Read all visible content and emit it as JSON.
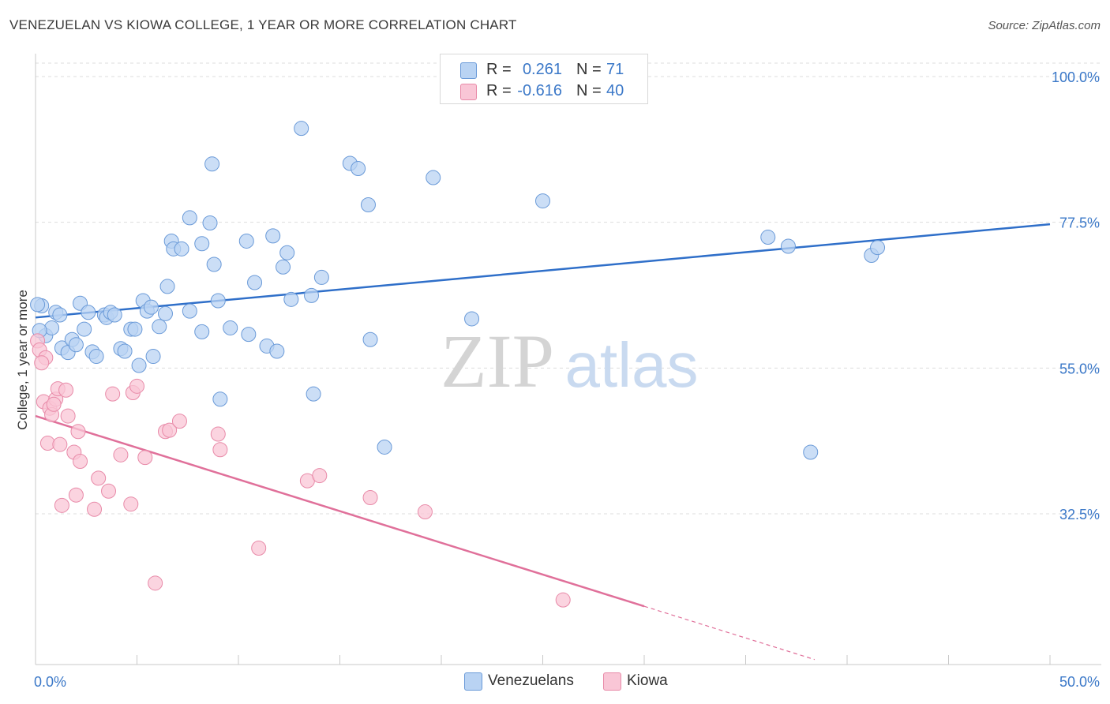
{
  "title": "VENEZUELAN VS KIOWA COLLEGE, 1 YEAR OR MORE CORRELATION CHART",
  "source": "Source: ZipAtlas.com",
  "watermark": {
    "part1": "ZIP",
    "part2": "atlas"
  },
  "colors": {
    "blue_fill": "#b9d3f3",
    "blue_stroke": "#6a9ad8",
    "blue_line": "#2f6fc9",
    "pink_fill": "#f9c6d6",
    "pink_stroke": "#e88aa8",
    "pink_line": "#e0709a",
    "axis_label": "#3b78c8",
    "grid": "#dddddd"
  },
  "legend": {
    "rows": [
      {
        "r_label": "R =",
        "r_value": "0.261",
        "n_label": "N =",
        "n_value": "71",
        "color": "#b9d3f3",
        "border": "#6a9ad8"
      },
      {
        "r_label": "R =",
        "r_value": "-0.616",
        "n_label": "N =",
        "n_value": "40",
        "color": "#f9c6d6",
        "border": "#e88aa8"
      }
    ]
  },
  "bottom_legend": [
    {
      "label": "Venezuelans",
      "color": "#b9d3f3",
      "border": "#6a9ad8"
    },
    {
      "label": "Kiowa",
      "color": "#f9c6d6",
      "border": "#e88aa8"
    }
  ],
  "chart_data": {
    "type": "scatter",
    "title": "VENEZUELAN VS KIOWA COLLEGE, 1 YEAR OR MORE CORRELATION CHART",
    "xlabel": "",
    "ylabel": "College, 1 year or more",
    "xlim": [
      0,
      50
    ],
    "ylim": [
      10,
      104
    ],
    "x_tick_labels": [
      {
        "value": 0,
        "label": "0.0%"
      },
      {
        "value": 50,
        "label": "50.0%"
      }
    ],
    "y_tick_labels": [
      {
        "value": 32.5,
        "label": "32.5%"
      },
      {
        "value": 55.0,
        "label": "55.0%"
      },
      {
        "value": 77.5,
        "label": "77.5%"
      },
      {
        "value": 100.0,
        "label": "100.0%"
      }
    ],
    "x_minor_ticks": [
      5,
      10,
      15,
      20,
      25,
      30,
      35,
      40,
      45,
      50
    ],
    "series": [
      {
        "name": "Venezuelans",
        "trend": {
          "x0": 0,
          "y0": 62.8,
          "x1": 50,
          "y1": 77.2,
          "dash_from": null
        },
        "points": [
          [
            0.3,
            64.6
          ],
          [
            0.5,
            60.0
          ],
          [
            0.8,
            61.2
          ],
          [
            1.0,
            63.6
          ],
          [
            1.2,
            63.2
          ],
          [
            1.3,
            58.1
          ],
          [
            1.6,
            57.4
          ],
          [
            1.8,
            59.4
          ],
          [
            2.0,
            58.6
          ],
          [
            2.2,
            65.0
          ],
          [
            2.4,
            61.0
          ],
          [
            2.6,
            63.6
          ],
          [
            2.8,
            57.5
          ],
          [
            3.0,
            56.8
          ],
          [
            3.4,
            63.2
          ],
          [
            3.5,
            62.8
          ],
          [
            3.7,
            63.6
          ],
          [
            3.9,
            63.2
          ],
          [
            4.2,
            58.0
          ],
          [
            4.4,
            57.6
          ],
          [
            4.7,
            61.0
          ],
          [
            4.9,
            61.0
          ],
          [
            5.1,
            55.4
          ],
          [
            5.3,
            65.4
          ],
          [
            5.5,
            63.8
          ],
          [
            5.7,
            64.4
          ],
          [
            5.8,
            56.8
          ],
          [
            6.1,
            61.4
          ],
          [
            6.4,
            63.4
          ],
          [
            6.5,
            67.6
          ],
          [
            6.7,
            74.6
          ],
          [
            6.8,
            73.4
          ],
          [
            7.2,
            73.4
          ],
          [
            7.6,
            78.2
          ],
          [
            7.6,
            63.8
          ],
          [
            8.2,
            74.2
          ],
          [
            8.2,
            60.6
          ],
          [
            8.6,
            77.4
          ],
          [
            8.7,
            86.5
          ],
          [
            8.8,
            71.0
          ],
          [
            9.0,
            65.4
          ],
          [
            9.1,
            50.2
          ],
          [
            9.6,
            61.2
          ],
          [
            10.4,
            74.6
          ],
          [
            10.5,
            60.2
          ],
          [
            10.8,
            68.2
          ],
          [
            11.4,
            58.4
          ],
          [
            11.7,
            75.4
          ],
          [
            11.9,
            57.6
          ],
          [
            12.2,
            70.6
          ],
          [
            12.4,
            72.8
          ],
          [
            12.6,
            65.6
          ],
          [
            13.1,
            92.0
          ],
          [
            13.6,
            66.2
          ],
          [
            13.7,
            51.0
          ],
          [
            14.1,
            69.0
          ],
          [
            15.5,
            86.6
          ],
          [
            15.9,
            85.8
          ],
          [
            16.4,
            80.2
          ],
          [
            16.5,
            59.4
          ],
          [
            17.2,
            42.8
          ],
          [
            19.6,
            84.4
          ],
          [
            21.5,
            62.6
          ],
          [
            25.0,
            80.8
          ],
          [
            36.1,
            75.2
          ],
          [
            37.1,
            73.8
          ],
          [
            38.2,
            42.0
          ],
          [
            41.2,
            72.4
          ],
          [
            41.5,
            73.6
          ],
          [
            0.2,
            60.8
          ],
          [
            0.1,
            64.8
          ]
        ]
      },
      {
        "name": "Kiowa",
        "trend": {
          "x0": 0,
          "y0": 47.6,
          "x1": 38.4,
          "y1": 10.0,
          "dash_from": 30.0
        },
        "points": [
          [
            0.1,
            59.2
          ],
          [
            0.2,
            57.8
          ],
          [
            0.4,
            49.8
          ],
          [
            0.5,
            56.6
          ],
          [
            0.6,
            43.4
          ],
          [
            0.7,
            48.8
          ],
          [
            0.8,
            47.8
          ],
          [
            1.0,
            50.2
          ],
          [
            1.1,
            51.8
          ],
          [
            1.2,
            43.2
          ],
          [
            1.3,
            33.8
          ],
          [
            1.5,
            51.6
          ],
          [
            1.6,
            47.6
          ],
          [
            1.9,
            42.0
          ],
          [
            2.0,
            35.4
          ],
          [
            2.1,
            45.2
          ],
          [
            2.2,
            40.6
          ],
          [
            2.9,
            33.2
          ],
          [
            3.1,
            38.0
          ],
          [
            3.6,
            36.0
          ],
          [
            3.8,
            51.0
          ],
          [
            4.2,
            41.6
          ],
          [
            4.7,
            34.0
          ],
          [
            4.8,
            51.2
          ],
          [
            5.0,
            52.2
          ],
          [
            5.4,
            41.2
          ],
          [
            5.9,
            21.8
          ],
          [
            6.4,
            45.2
          ],
          [
            6.6,
            45.4
          ],
          [
            7.1,
            46.8
          ],
          [
            9.0,
            44.8
          ],
          [
            9.1,
            42.4
          ],
          [
            11.0,
            27.2
          ],
          [
            13.4,
            37.6
          ],
          [
            14.0,
            38.4
          ],
          [
            16.5,
            35.0
          ],
          [
            19.2,
            32.8
          ],
          [
            26.0,
            19.2
          ],
          [
            0.3,
            55.8
          ],
          [
            0.9,
            49.4
          ]
        ]
      }
    ]
  }
}
